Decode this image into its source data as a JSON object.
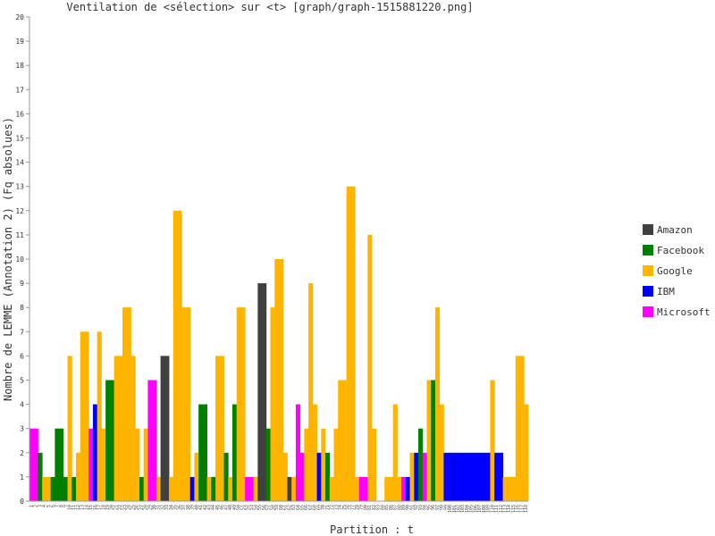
{
  "chart_data": {
    "type": "bar",
    "title": "Ventilation de <sélection> sur <t> [graph/graph-1515881220.png]",
    "xlabel": "Partition : t",
    "ylabel": "Nombre de LEMME (Annotation 2) (Fq absolues)",
    "ylim": [
      0,
      20
    ],
    "yticks": [
      0,
      1,
      2,
      3,
      4,
      5,
      6,
      7,
      8,
      9,
      10,
      11,
      12,
      13,
      14,
      15,
      16,
      17,
      18,
      19,
      20
    ],
    "grid": false,
    "legend_position": "right",
    "series": [
      {
        "name": "Amazon",
        "color": "#404040"
      },
      {
        "name": "Facebook",
        "color": "#008000"
      },
      {
        "name": "Google",
        "color": "#ffb400"
      },
      {
        "name": "IBM",
        "color": "#0000ff"
      },
      {
        "name": "Microsoft",
        "color": "#ff00ff"
      }
    ],
    "bars": [
      {
        "x": 1,
        "series": "Microsoft",
        "value": 3
      },
      {
        "x": 2,
        "series": "Microsoft",
        "value": 3
      },
      {
        "x": 3,
        "series": "Facebook",
        "value": 2
      },
      {
        "x": 4,
        "series": "Google",
        "value": 1
      },
      {
        "x": 5,
        "series": "Google",
        "value": 1
      },
      {
        "x": 6,
        "series": "Facebook",
        "value": 1
      },
      {
        "x": 7,
        "series": "Facebook",
        "value": 3
      },
      {
        "x": 8,
        "series": "Facebook",
        "value": 3
      },
      {
        "x": 9,
        "series": "Facebook",
        "value": 1
      },
      {
        "x": 10,
        "series": "Google",
        "value": 6
      },
      {
        "x": 11,
        "series": "Facebook",
        "value": 1
      },
      {
        "x": 12,
        "series": "Google",
        "value": 2
      },
      {
        "x": 13,
        "series": "Google",
        "value": 7
      },
      {
        "x": 14,
        "series": "Google",
        "value": 7
      },
      {
        "x": 15,
        "series": "Microsoft",
        "value": 3
      },
      {
        "x": 16,
        "series": "IBM",
        "value": 4
      },
      {
        "x": 17,
        "series": "Google",
        "value": 7
      },
      {
        "x": 18,
        "series": "Google",
        "value": 3
      },
      {
        "x": 19,
        "series": "Facebook",
        "value": 5
      },
      {
        "x": 20,
        "series": "Facebook",
        "value": 5
      },
      {
        "x": 21,
        "series": "Google",
        "value": 6
      },
      {
        "x": 22,
        "series": "Google",
        "value": 6
      },
      {
        "x": 23,
        "series": "Google",
        "value": 8
      },
      {
        "x": 24,
        "series": "Google",
        "value": 8
      },
      {
        "x": 25,
        "series": "Google",
        "value": 6
      },
      {
        "x": 26,
        "series": "Google",
        "value": 3
      },
      {
        "x": 27,
        "series": "Facebook",
        "value": 1
      },
      {
        "x": 28,
        "series": "Google",
        "value": 3
      },
      {
        "x": 29,
        "series": "Microsoft",
        "value": 5
      },
      {
        "x": 30,
        "series": "Microsoft",
        "value": 5
      },
      {
        "x": 31,
        "series": "Google",
        "value": 1
      },
      {
        "x": 32,
        "series": "Amazon",
        "value": 6
      },
      {
        "x": 33,
        "series": "Amazon",
        "value": 6
      },
      {
        "x": 34,
        "series": "Google",
        "value": 1
      },
      {
        "x": 35,
        "series": "Google",
        "value": 12
      },
      {
        "x": 36,
        "series": "Google",
        "value": 12
      },
      {
        "x": 37,
        "series": "Google",
        "value": 8
      },
      {
        "x": 38,
        "series": "Google",
        "value": 8
      },
      {
        "x": 39,
        "series": "IBM",
        "value": 1
      },
      {
        "x": 40,
        "series": "Google",
        "value": 2
      },
      {
        "x": 41,
        "series": "Facebook",
        "value": 4
      },
      {
        "x": 42,
        "series": "Facebook",
        "value": 4
      },
      {
        "x": 43,
        "series": "Google",
        "value": 1
      },
      {
        "x": 44,
        "series": "Facebook",
        "value": 1
      },
      {
        "x": 45,
        "series": "Google",
        "value": 6
      },
      {
        "x": 46,
        "series": "Google",
        "value": 6
      },
      {
        "x": 47,
        "series": "Facebook",
        "value": 2
      },
      {
        "x": 48,
        "series": "Google",
        "value": 1
      },
      {
        "x": 49,
        "series": "Facebook",
        "value": 4
      },
      {
        "x": 50,
        "series": "Google",
        "value": 8
      },
      {
        "x": 51,
        "series": "Google",
        "value": 8
      },
      {
        "x": 52,
        "series": "Microsoft",
        "value": 1
      },
      {
        "x": 53,
        "series": "Microsoft",
        "value": 1
      },
      {
        "x": 54,
        "series": "Google",
        "value": 1
      },
      {
        "x": 55,
        "series": "Amazon",
        "value": 9
      },
      {
        "x": 56,
        "series": "Amazon",
        "value": 9
      },
      {
        "x": 57,
        "series": "Facebook",
        "value": 3
      },
      {
        "x": 58,
        "series": "Google",
        "value": 8
      },
      {
        "x": 59,
        "series": "Google",
        "value": 10
      },
      {
        "x": 60,
        "series": "Google",
        "value": 10
      },
      {
        "x": 61,
        "series": "Google",
        "value": 2
      },
      {
        "x": 62,
        "series": "Amazon",
        "value": 1
      },
      {
        "x": 63,
        "series": "Google",
        "value": 1
      },
      {
        "x": 64,
        "series": "Microsoft",
        "value": 4
      },
      {
        "x": 65,
        "series": "Microsoft",
        "value": 2
      },
      {
        "x": 66,
        "series": "Google",
        "value": 3
      },
      {
        "x": 67,
        "series": "Google",
        "value": 9
      },
      {
        "x": 68,
        "series": "Google",
        "value": 4
      },
      {
        "x": 69,
        "series": "IBM",
        "value": 2
      },
      {
        "x": 70,
        "series": "Google",
        "value": 3
      },
      {
        "x": 71,
        "series": "Facebook",
        "value": 2
      },
      {
        "x": 72,
        "series": "Google",
        "value": 1
      },
      {
        "x": 73,
        "series": "Google",
        "value": 3
      },
      {
        "x": 74,
        "series": "Google",
        "value": 5
      },
      {
        "x": 75,
        "series": "Google",
        "value": 5
      },
      {
        "x": 76,
        "series": "Google",
        "value": 13
      },
      {
        "x": 77,
        "series": "Google",
        "value": 13
      },
      {
        "x": 78,
        "series": "Google",
        "value": 1
      },
      {
        "x": 79,
        "series": "Microsoft",
        "value": 1
      },
      {
        "x": 80,
        "series": "Microsoft",
        "value": 1
      },
      {
        "x": 81,
        "series": "Google",
        "value": 11
      },
      {
        "x": 82,
        "series": "Google",
        "value": 3
      },
      {
        "x": 83,
        "series": "Google",
        "value": 0
      },
      {
        "x": 84,
        "series": "Google",
        "value": 0
      },
      {
        "x": 85,
        "series": "Google",
        "value": 1
      },
      {
        "x": 86,
        "series": "Google",
        "value": 1
      },
      {
        "x": 87,
        "series": "Google",
        "value": 4
      },
      {
        "x": 88,
        "series": "Google",
        "value": 1
      },
      {
        "x": 89,
        "series": "Microsoft",
        "value": 1
      },
      {
        "x": 90,
        "series": "IBM",
        "value": 1
      },
      {
        "x": 91,
        "series": "Google",
        "value": 2
      },
      {
        "x": 92,
        "series": "IBM",
        "value": 2
      },
      {
        "x": 93,
        "series": "Facebook",
        "value": 3
      },
      {
        "x": 94,
        "series": "Microsoft",
        "value": 2
      },
      {
        "x": 95,
        "series": "Google",
        "value": 5
      },
      {
        "x": 96,
        "series": "Facebook",
        "value": 5
      },
      {
        "x": 97,
        "series": "Google",
        "value": 8
      },
      {
        "x": 98,
        "series": "Google",
        "value": 4
      },
      {
        "x": 99,
        "series": "IBM",
        "value": 2
      },
      {
        "x": 100,
        "series": "IBM",
        "value": 2
      },
      {
        "x": 101,
        "series": "IBM",
        "value": 2
      },
      {
        "x": 102,
        "series": "IBM",
        "value": 2
      },
      {
        "x": 103,
        "series": "IBM",
        "value": 2
      },
      {
        "x": 104,
        "series": "IBM",
        "value": 2
      },
      {
        "x": 105,
        "series": "IBM",
        "value": 2
      },
      {
        "x": 106,
        "series": "IBM",
        "value": 2
      },
      {
        "x": 107,
        "series": "IBM",
        "value": 2
      },
      {
        "x": 108,
        "series": "IBM",
        "value": 2
      },
      {
        "x": 109,
        "series": "IBM",
        "value": 2
      },
      {
        "x": 110,
        "series": "Google",
        "value": 5
      },
      {
        "x": 111,
        "series": "IBM",
        "value": 2
      },
      {
        "x": 112,
        "series": "IBM",
        "value": 2
      },
      {
        "x": 113,
        "series": "Google",
        "value": 1
      },
      {
        "x": 114,
        "series": "Google",
        "value": 1
      },
      {
        "x": 115,
        "series": "Google",
        "value": 1
      },
      {
        "x": 116,
        "series": "Google",
        "value": 6
      },
      {
        "x": 117,
        "series": "Google",
        "value": 6
      },
      {
        "x": 118,
        "series": "Google",
        "value": 4
      }
    ]
  }
}
